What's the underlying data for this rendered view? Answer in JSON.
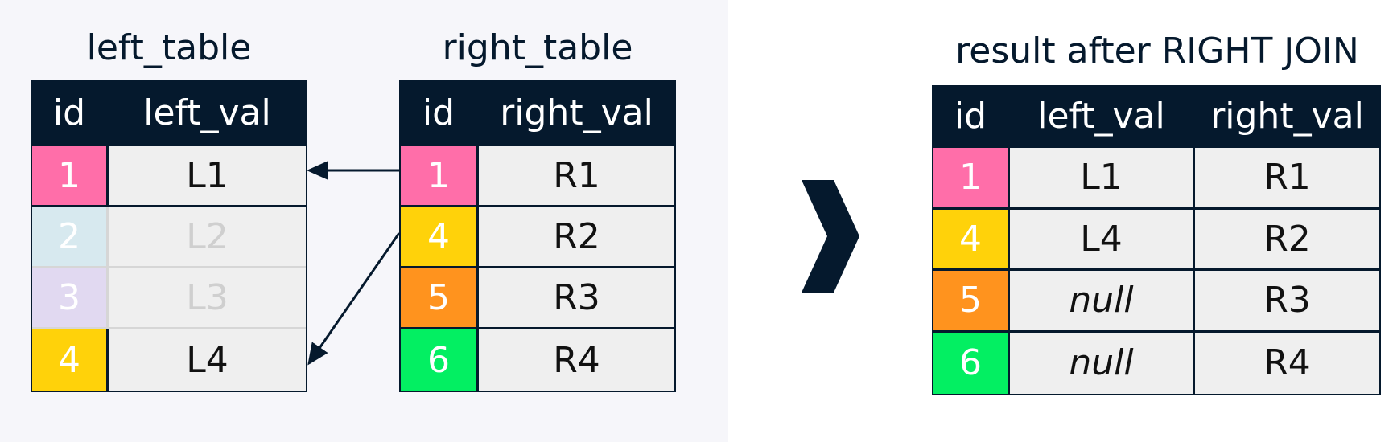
{
  "colors": {
    "header_bg": "#05192d",
    "cell_bg": "#efefef",
    "pink": "#ff6ea9",
    "yellow": "#ffd20a",
    "orange": "#ff931e",
    "green": "#03ef62",
    "faded_blue": "#d7e9ef",
    "faded_purple": "#e1d9f1"
  },
  "left_table": {
    "title": "left_table",
    "headers": [
      "id",
      "left_val"
    ],
    "rows": [
      {
        "id": "1",
        "val": "L1",
        "color": "pink",
        "faded": false
      },
      {
        "id": "2",
        "val": "L2",
        "color": "faded_blue",
        "faded": true
      },
      {
        "id": "3",
        "val": "L3",
        "color": "faded_purple",
        "faded": true
      },
      {
        "id": "4",
        "val": "L4",
        "color": "yellow",
        "faded": false
      }
    ]
  },
  "right_table": {
    "title": "right_table",
    "headers": [
      "id",
      "right_val"
    ],
    "rows": [
      {
        "id": "1",
        "val": "R1",
        "color": "pink"
      },
      {
        "id": "4",
        "val": "R2",
        "color": "yellow"
      },
      {
        "id": "5",
        "val": "R3",
        "color": "orange"
      },
      {
        "id": "6",
        "val": "R4",
        "color": "green"
      }
    ]
  },
  "result_table": {
    "title": "result after RIGHT JOIN",
    "headers": [
      "id",
      "left_val",
      "right_val"
    ],
    "rows": [
      {
        "id": "1",
        "left": "L1",
        "right": "R1",
        "color": "pink",
        "null": false
      },
      {
        "id": "4",
        "left": "L4",
        "right": "R2",
        "color": "yellow",
        "null": false
      },
      {
        "id": "5",
        "left": "null",
        "right": "R3",
        "color": "orange",
        "null": true
      },
      {
        "id": "6",
        "left": "null",
        "right": "R4",
        "color": "green",
        "null": true
      }
    ]
  },
  "arrow_icon": "chevron-right-icon"
}
